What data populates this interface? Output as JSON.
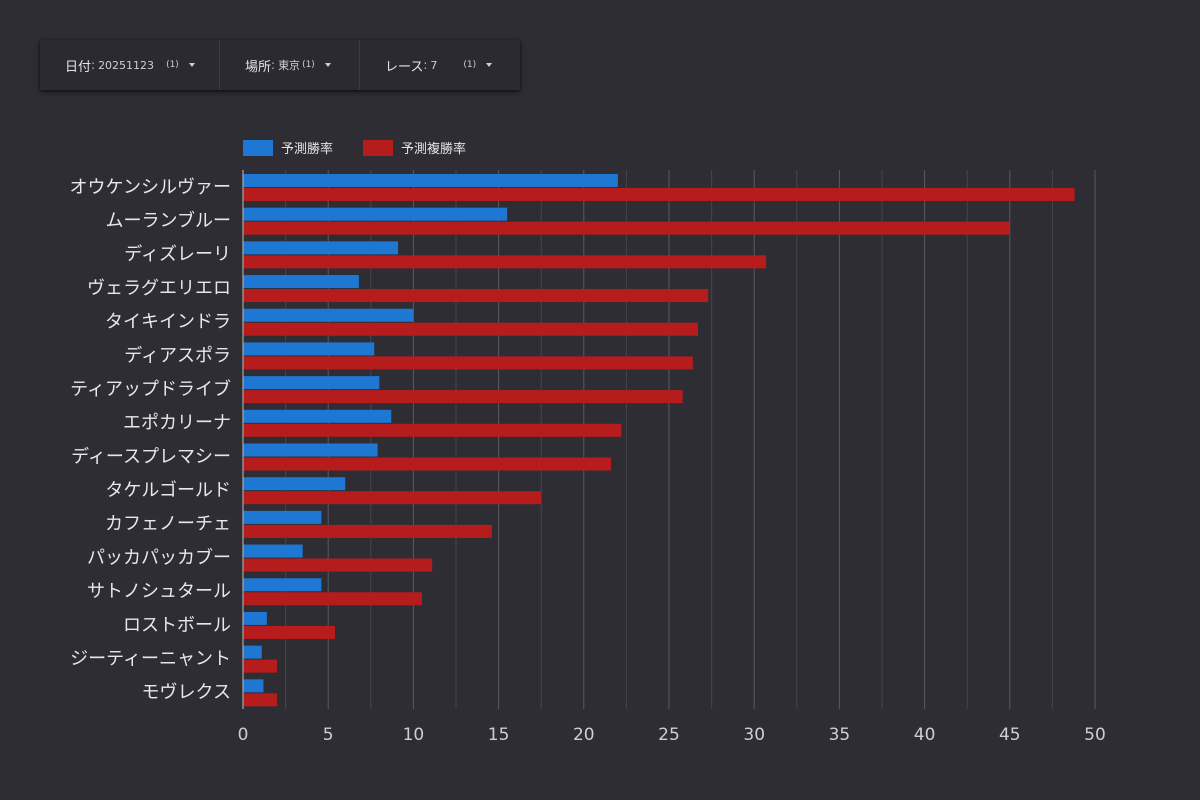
{
  "filters": [
    {
      "label": "日付",
      "value": "20251123",
      "count": "(1)"
    },
    {
      "label": "場所",
      "value": "東京",
      "count": "(1)"
    },
    {
      "label": "レース",
      "value": "7",
      "count": "(1)"
    }
  ],
  "chart_data": {
    "type": "bar",
    "orientation": "horizontal",
    "categories": [
      "オウケンシルヴァー",
      "ムーランブルー",
      "ディズレーリ",
      "ヴェラグエリエロ",
      "タイキインドラ",
      "ディアスポラ",
      "ティアップドライブ",
      "エポカリーナ",
      "ディースプレマシー",
      "タケルゴールド",
      "カフェノーチェ",
      "パッカパッカブー",
      "サトノシュタール",
      "ロストボール",
      "ジーティーニャント",
      "モヴレクス"
    ],
    "series": [
      {
        "name": "予測勝率",
        "color": "#1f77d4",
        "values": [
          22.0,
          15.5,
          9.1,
          6.8,
          10.0,
          7.7,
          8.0,
          8.7,
          7.9,
          6.0,
          4.6,
          3.5,
          4.6,
          1.4,
          1.1,
          1.2
        ]
      },
      {
        "name": "予測複勝率",
        "color": "#b71c1c",
        "values": [
          48.8,
          45.0,
          30.7,
          27.3,
          26.7,
          26.4,
          25.8,
          22.2,
          21.6,
          17.5,
          14.6,
          11.1,
          10.5,
          5.4,
          2.0,
          2.0
        ]
      }
    ],
    "xlim": [
      0,
      50
    ],
    "xticks": [
      "0",
      "5",
      "10",
      "15",
      "20",
      "25",
      "30",
      "35",
      "40",
      "45",
      "50"
    ],
    "grid": true,
    "legend": "top-left",
    "title": "",
    "xlabel": "",
    "ylabel": ""
  }
}
